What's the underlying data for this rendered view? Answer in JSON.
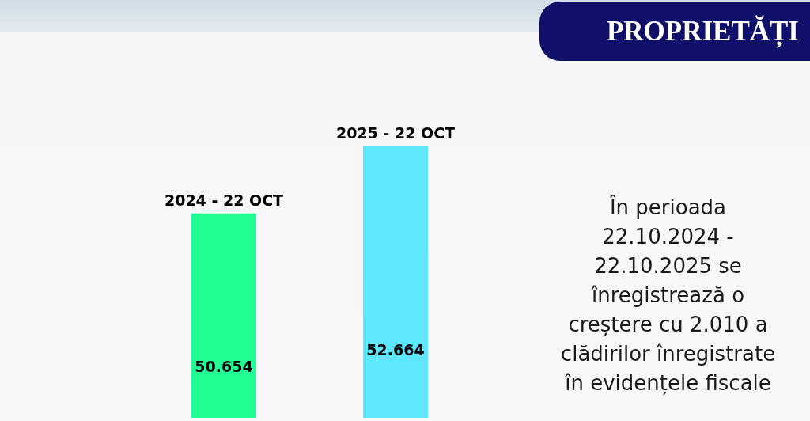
{
  "chart_data": {
    "type": "bar",
    "title": "PROPRIETĂȚI",
    "categories": [
      "2024 - 22 OCT",
      "2025 - 22 OCT"
    ],
    "values": [
      50654,
      52664
    ],
    "value_labels": [
      "50.654",
      "52.664"
    ],
    "colors": [
      "#21ff94",
      "#5ee7fe"
    ],
    "ylim": [
      44600,
      52664
    ],
    "tick_labels": "x",
    "annotations": [
      "În perioada 22.10.2024 - 22.10.2025 se înregistrează o creștere cu 2.010 a clădirilor înregistrate în evidențele fiscale"
    ]
  }
}
